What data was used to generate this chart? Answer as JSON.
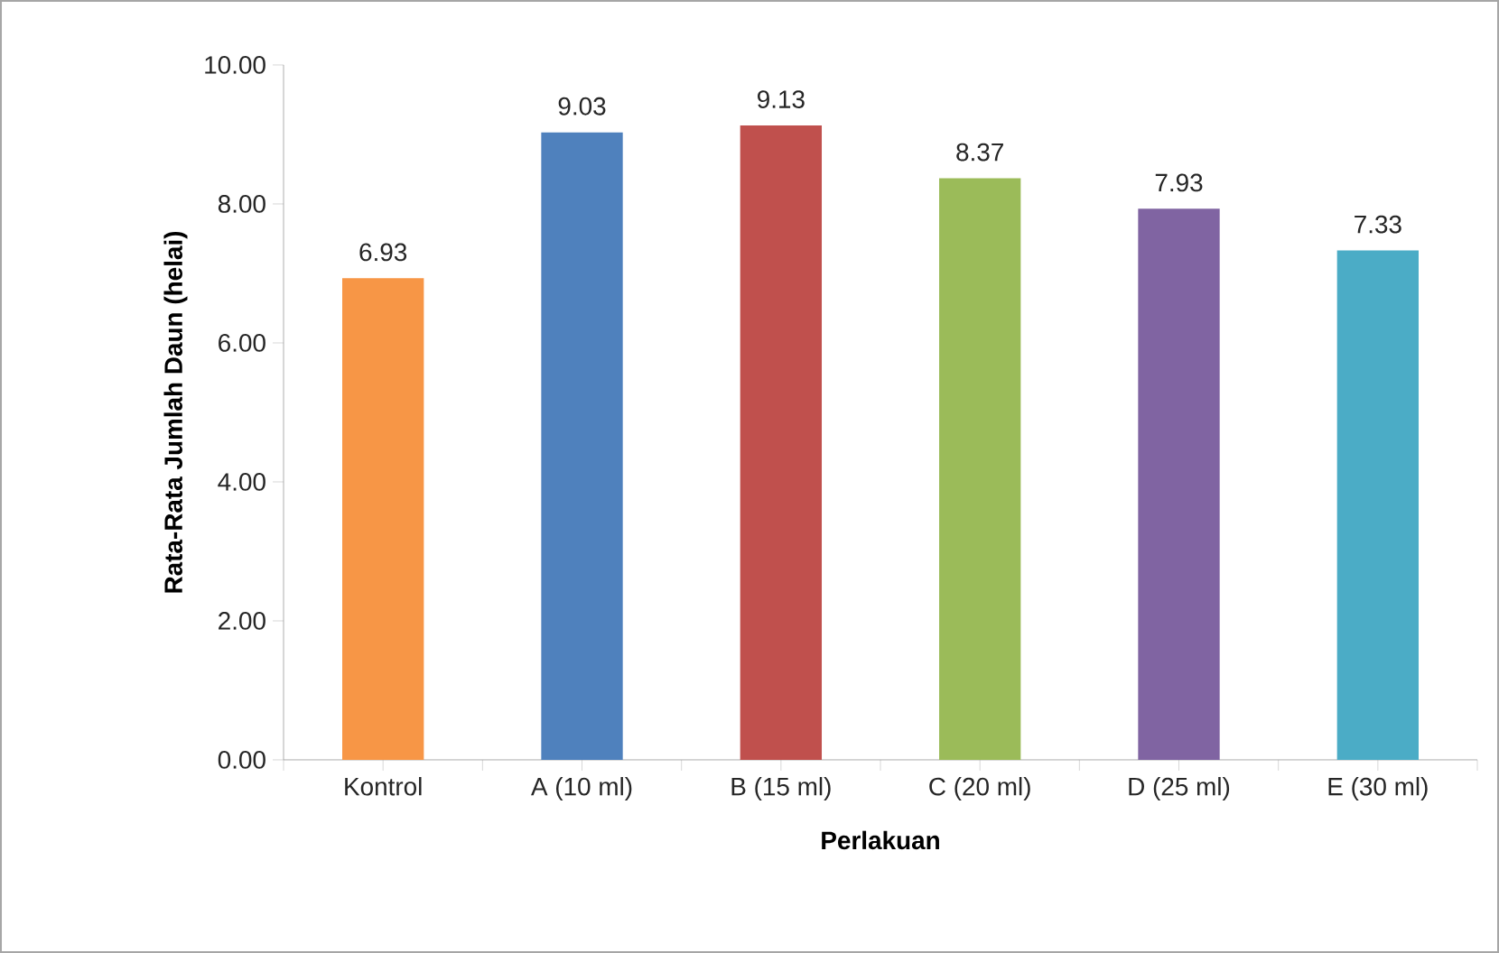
{
  "chart_data": {
    "type": "bar",
    "xlabel": "Perlakuan",
    "ylabel": "Rata-Rata Jumlah Daun (helai)",
    "categories": [
      "Kontrol",
      "A (10 ml)",
      "B (15 ml)",
      "C (20 ml)",
      "D (25 ml)",
      "E (30 ml)"
    ],
    "values": [
      6.93,
      9.03,
      9.13,
      8.37,
      7.93,
      7.33
    ],
    "colors": [
      "#f79646",
      "#4f81bd",
      "#c0504d",
      "#9bbb59",
      "#8064a2",
      "#4bacc6"
    ],
    "ylim": [
      0,
      10
    ],
    "yticks": [
      {
        "value": 0,
        "label": "0.00"
      },
      {
        "value": 2,
        "label": "2.00"
      },
      {
        "value": 4,
        "label": "4.00"
      },
      {
        "value": 6,
        "label": "6.00"
      },
      {
        "value": 8,
        "label": "8.00"
      },
      {
        "value": 10,
        "label": "10.00"
      }
    ],
    "data_labels": true
  }
}
